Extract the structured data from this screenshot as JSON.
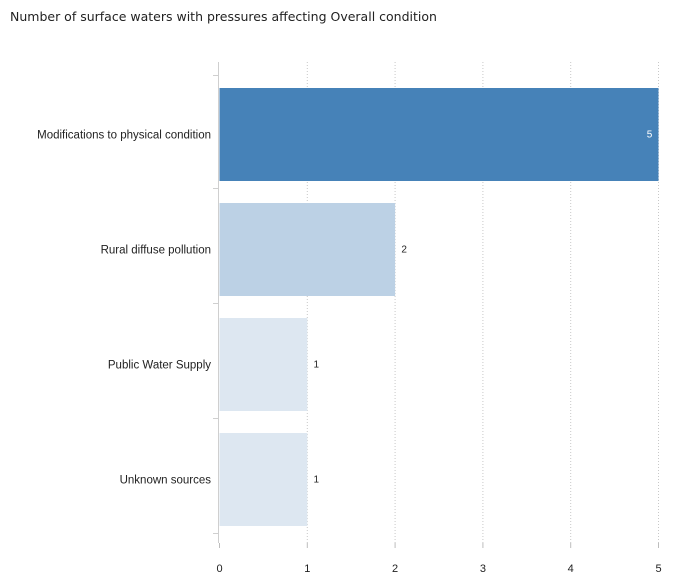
{
  "chart_data": {
    "type": "bar",
    "orientation": "horizontal",
    "title": "Number of surface waters with pressures affecting Overall condition",
    "categories": [
      "Modifications to physical condition",
      "Rural diffuse pollution",
      "Public Water Supply",
      "Unknown sources"
    ],
    "values": [
      5,
      2,
      1,
      1
    ],
    "data_labels": [
      "5",
      "2",
      "1",
      "1"
    ],
    "bar_colors": [
      "#4682b8",
      "#bcd1e5",
      "#dde7f1",
      "#dde7f1"
    ],
    "data_label_colors": [
      "#ffffff",
      "#222222",
      "#222222",
      "#222222"
    ],
    "x_ticks": [
      "0",
      "1",
      "2",
      "3",
      "4",
      "5"
    ],
    "xlim": [
      0,
      5.4
    ],
    "xlabel": "",
    "ylabel": "",
    "grid": "vertical dotted",
    "legend": "none"
  }
}
